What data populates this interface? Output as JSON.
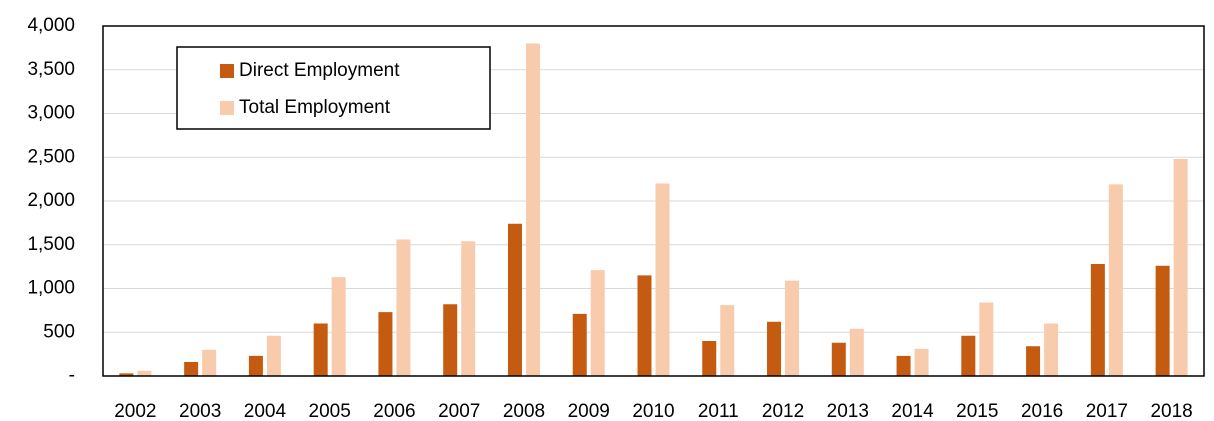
{
  "chart_data": {
    "type": "bar",
    "categories": [
      "2002",
      "2003",
      "2004",
      "2005",
      "2006",
      "2007",
      "2008",
      "2009",
      "2010",
      "2011",
      "2012",
      "2013",
      "2014",
      "2015",
      "2016",
      "2017",
      "2018"
    ],
    "series": [
      {
        "name": "Direct Employment",
        "color": "#c55a11",
        "values": [
          30,
          160,
          230,
          600,
          730,
          820,
          1740,
          710,
          1150,
          400,
          620,
          380,
          230,
          460,
          340,
          1280,
          1260
        ]
      },
      {
        "name": "Total Employment",
        "color": "#f8cbad",
        "values": [
          60,
          300,
          460,
          1130,
          1560,
          1540,
          3800,
          1210,
          2200,
          810,
          1090,
          540,
          310,
          840,
          600,
          2190,
          2480
        ]
      }
    ],
    "ylim": [
      0,
      4000
    ],
    "yticks": [
      {
        "value": 0,
        "label": "-"
      },
      500,
      {
        "value": 1000,
        "label": "1,000"
      },
      {
        "value": 1500,
        "label": "1,500"
      },
      {
        "value": 2000,
        "label": "2,000"
      },
      {
        "value": 2500,
        "label": "2,500"
      },
      {
        "value": 3000,
        "label": "3,000"
      },
      {
        "value": 3500,
        "label": "3,500"
      },
      {
        "value": 4000,
        "label": "4,000"
      }
    ],
    "grid": true,
    "legend": "upper left"
  }
}
